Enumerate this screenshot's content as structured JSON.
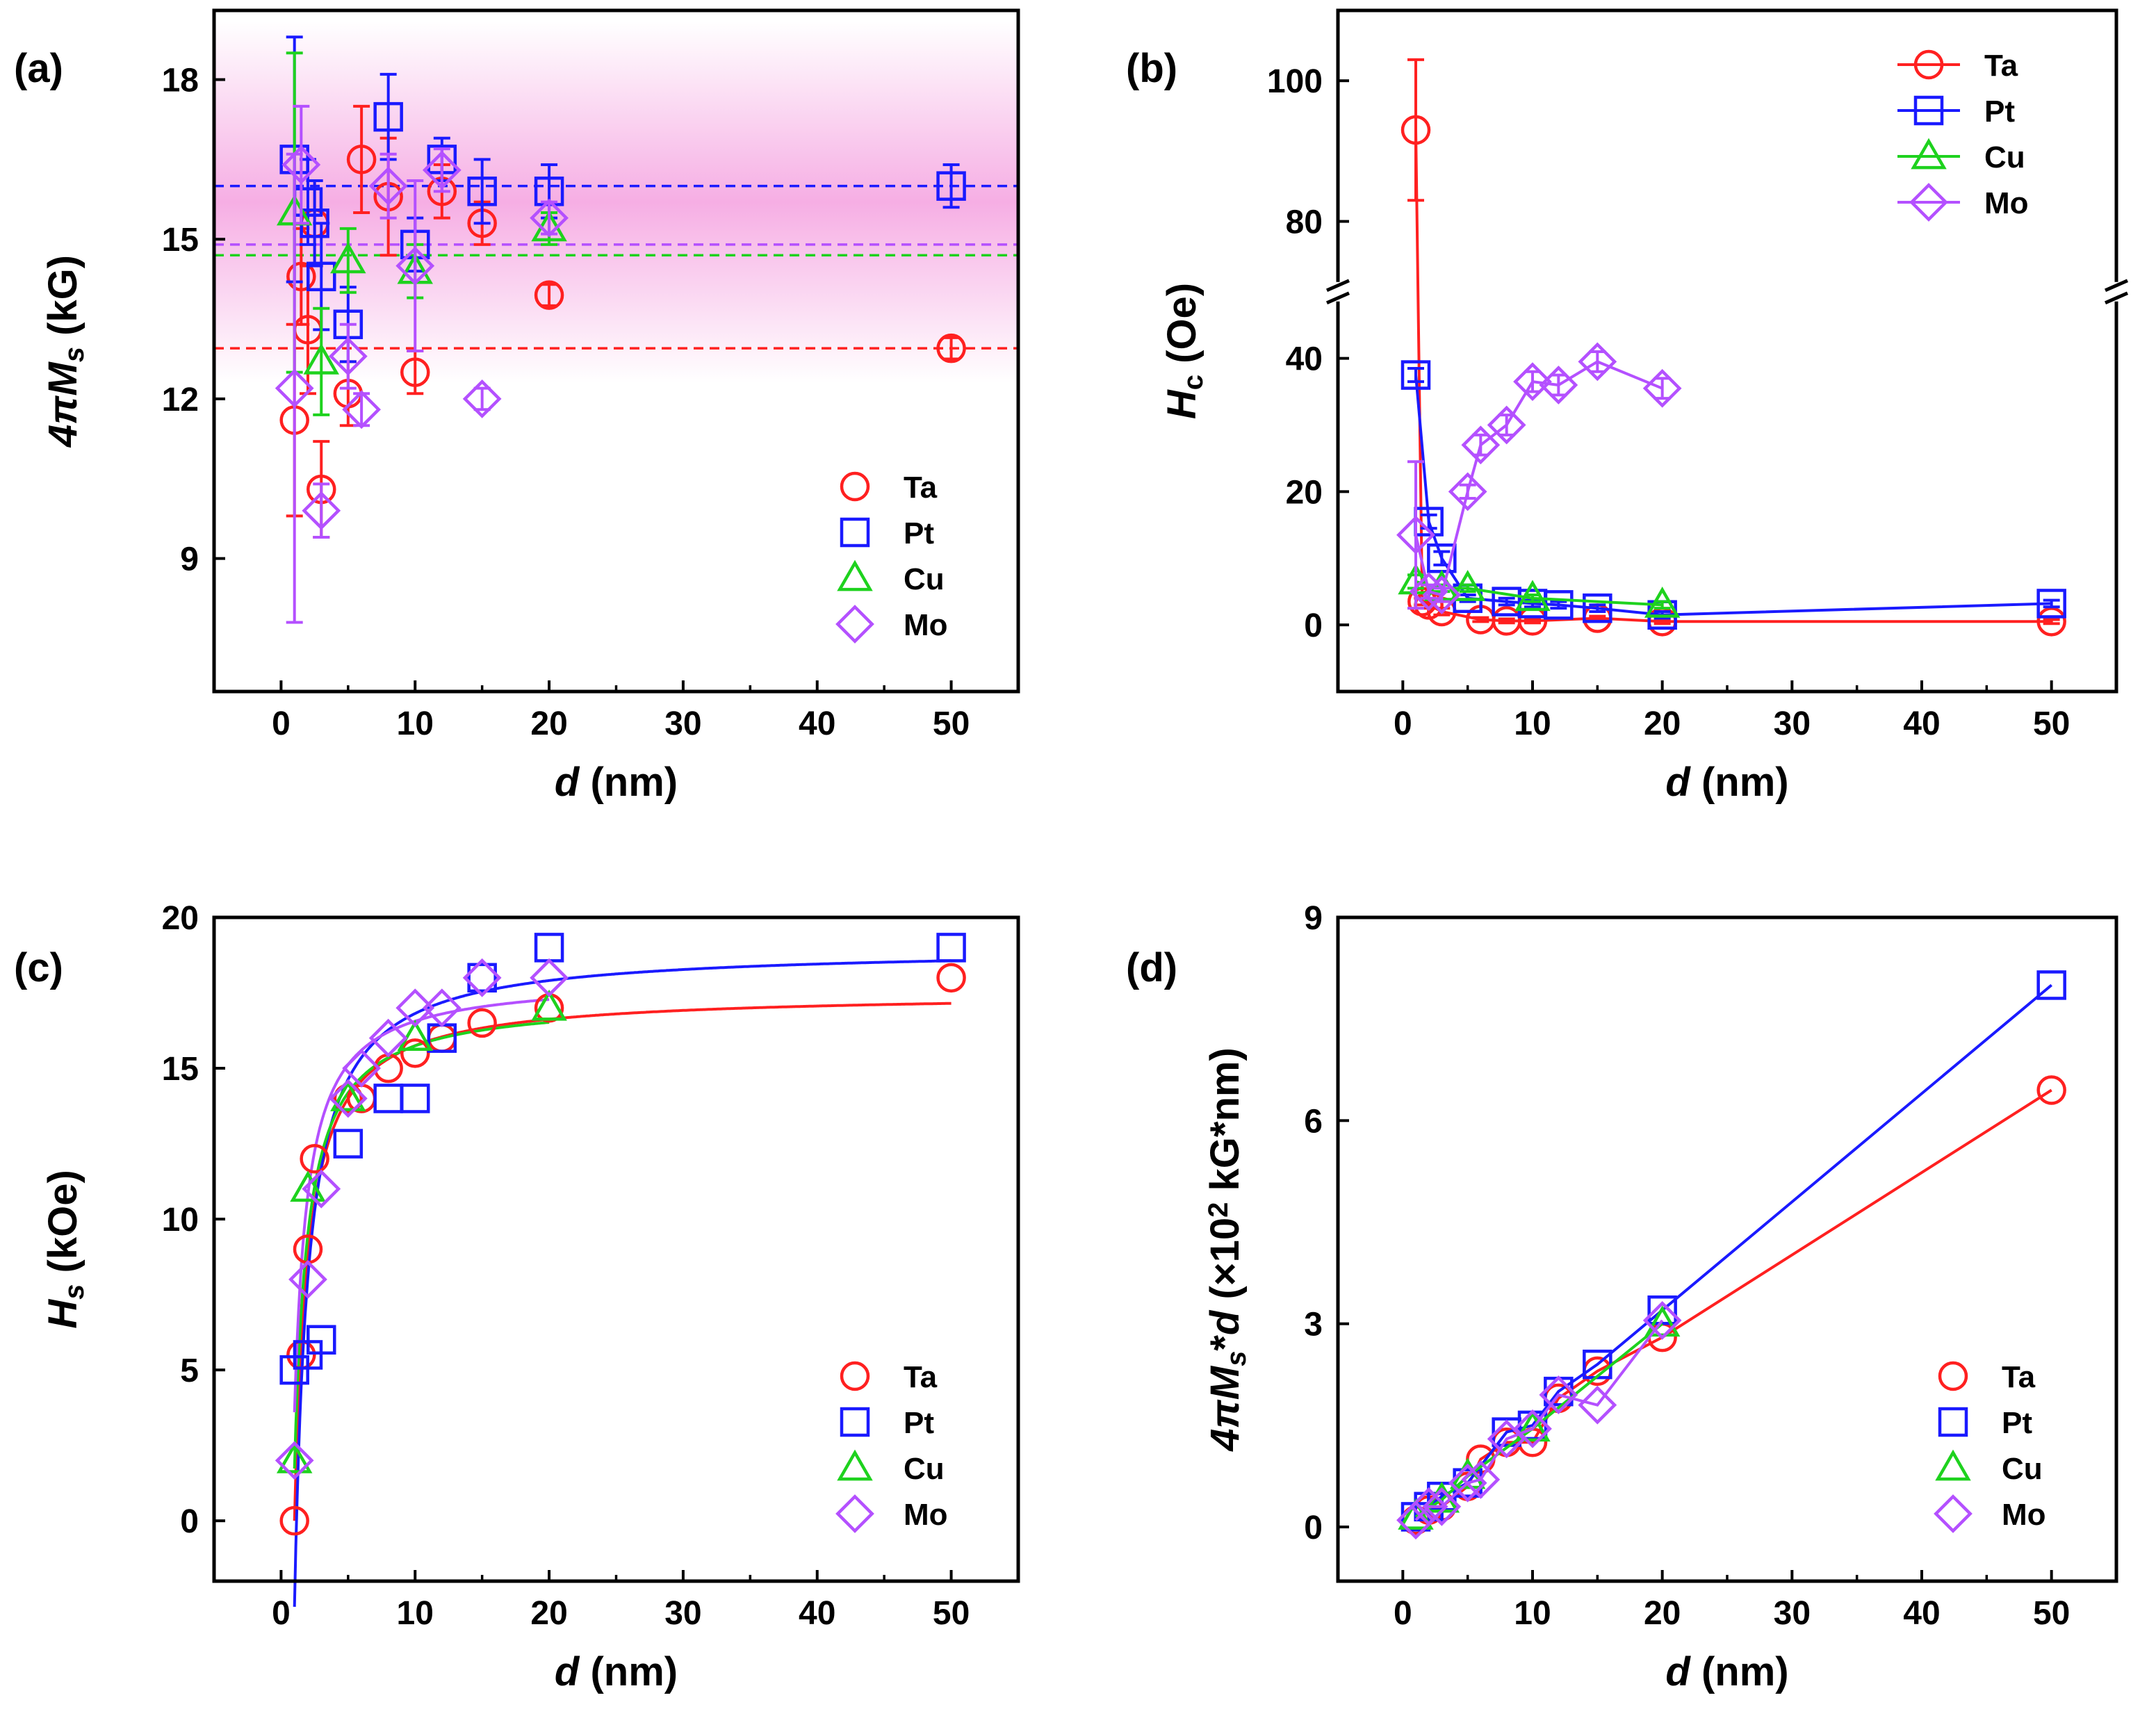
{
  "colors": {
    "Ta": "#ff2020",
    "Pt": "#1a1aff",
    "Cu": "#1ed21e",
    "Mo": "#b450ff"
  },
  "chart_data": [
    {
      "id": "a",
      "panel_label": "(a)",
      "type": "scatter",
      "xlabel_italic": "d",
      "xlabel_rest": " (nm)",
      "ylabel_parts": [
        {
          "t": "4",
          "i": true
        },
        {
          "t": "π",
          "i": true
        },
        {
          "t": "M",
          "i": true
        },
        {
          "t": "s",
          "i": true,
          "sub": true
        },
        {
          "t": " (kG)",
          "i": false
        }
      ],
      "xlim": [
        -5,
        55
      ],
      "ylim": [
        6.5,
        19.3
      ],
      "xticks": [
        0,
        10,
        20,
        30,
        40,
        50
      ],
      "yticks": [
        9,
        12,
        15,
        18
      ],
      "legend": {
        "position": "bottom-right",
        "entries": [
          "Ta",
          "Pt",
          "Cu",
          "Mo"
        ],
        "with_line": false
      },
      "shaded_band": {
        "center": 15.7,
        "half_width": 3.4,
        "color": "#f078d2"
      },
      "hlines": [
        {
          "series": "Pt",
          "y": 16.0
        },
        {
          "series": "Mo",
          "y": 14.9
        },
        {
          "series": "Cu",
          "y": 14.7
        },
        {
          "series": "Ta",
          "y": 12.95
        }
      ],
      "series": [
        {
          "name": "Ta",
          "marker": "circle",
          "points": [
            {
              "x": 1,
              "y": 11.6,
              "err": 1.8
            },
            {
              "x": 1.5,
              "y": 14.3,
              "err": 0.9
            },
            {
              "x": 2,
              "y": 13.3,
              "err": 1.2
            },
            {
              "x": 2.5,
              "y": 15.3,
              "err": 0.8
            },
            {
              "x": 3,
              "y": 10.3,
              "err": 0.9
            },
            {
              "x": 5,
              "y": 12.1,
              "err": 0.6
            },
            {
              "x": 6,
              "y": 16.5,
              "err": 1.0
            },
            {
              "x": 8,
              "y": 15.8,
              "err": 1.1
            },
            {
              "x": 10,
              "y": 12.5,
              "err": 0.4
            },
            {
              "x": 12,
              "y": 15.9,
              "err": 0.5
            },
            {
              "x": 15,
              "y": 15.3,
              "err": 0.4
            },
            {
              "x": 20,
              "y": 13.95,
              "err": 0.2
            },
            {
              "x": 50,
              "y": 12.95,
              "err": 0.2
            }
          ]
        },
        {
          "name": "Pt",
          "marker": "square",
          "points": [
            {
              "x": 1,
              "y": 16.5,
              "err": 2.3
            },
            {
              "x": 2,
              "y": 15.7,
              "err": 0.8
            },
            {
              "x": 2.5,
              "y": 15.3,
              "err": 0.8
            },
            {
              "x": 3,
              "y": 14.3,
              "err": 1.0
            },
            {
              "x": 5,
              "y": 13.4,
              "err": 0.7
            },
            {
              "x": 8,
              "y": 17.3,
              "err": 0.8
            },
            {
              "x": 10,
              "y": 14.9,
              "err": 0.5
            },
            {
              "x": 12,
              "y": 16.5,
              "err": 0.4
            },
            {
              "x": 15,
              "y": 15.9,
              "err": 0.6
            },
            {
              "x": 20,
              "y": 15.9,
              "err": 0.5
            },
            {
              "x": 50,
              "y": 16.0,
              "err": 0.4
            }
          ]
        },
        {
          "name": "Cu",
          "marker": "triangle",
          "points": [
            {
              "x": 1,
              "y": 15.5,
              "err": 3.0
            },
            {
              "x": 3,
              "y": 12.7,
              "err": 1.0
            },
            {
              "x": 5,
              "y": 14.6,
              "err": 0.6
            },
            {
              "x": 10,
              "y": 14.4,
              "err": 0.5
            },
            {
              "x": 20,
              "y": 15.2,
              "err": 0.3
            }
          ]
        },
        {
          "name": "Mo",
          "marker": "diamond",
          "points": [
            {
              "x": 1,
              "y": 12.2,
              "err": 4.4
            },
            {
              "x": 1.5,
              "y": 16.4,
              "err": 1.1
            },
            {
              "x": 3,
              "y": 9.9,
              "err": 0.5
            },
            {
              "x": 5,
              "y": 12.8,
              "err": 0.6
            },
            {
              "x": 6,
              "y": 11.8,
              "err": 0.3
            },
            {
              "x": 8,
              "y": 16.0,
              "err": 0.6
            },
            {
              "x": 10,
              "y": 14.5,
              "err": 1.6
            },
            {
              "x": 12,
              "y": 16.3,
              "err": 0.4
            },
            {
              "x": 15,
              "y": 12.0,
              "err": 0.2
            },
            {
              "x": 20,
              "y": 15.4,
              "err": 0.3
            }
          ]
        }
      ]
    },
    {
      "id": "b",
      "panel_label": "(b)",
      "type": "line",
      "xlabel_italic": "d",
      "xlabel_rest": " (nm)",
      "ylabel_parts": [
        {
          "t": "H",
          "i": true
        },
        {
          "t": "c",
          "i": false,
          "sub": true
        },
        {
          "t": " (Oe)",
          "i": false
        }
      ],
      "xlim": [
        -5,
        55
      ],
      "broken_y": {
        "lower": [
          -10,
          50
        ],
        "upper": [
          70,
          110
        ],
        "lower_frac": 0.587
      },
      "xticks": [
        0,
        10,
        20,
        30,
        40,
        50
      ],
      "yticks": [
        0,
        20,
        40,
        80,
        100
      ],
      "legend": {
        "position": "top-right",
        "entries": [
          "Ta",
          "Pt",
          "Cu",
          "Mo"
        ],
        "with_line": true
      },
      "series": [
        {
          "name": "Ta",
          "marker": "circle",
          "points": [
            {
              "x": 1,
              "y": 93,
              "err": 10
            },
            {
              "x": 1.5,
              "y": 3.5,
              "err": 0.5
            },
            {
              "x": 2,
              "y": 3,
              "err": 0.5
            },
            {
              "x": 3,
              "y": 2,
              "err": 0.5
            },
            {
              "x": 6,
              "y": 0.8,
              "err": 0.3
            },
            {
              "x": 8,
              "y": 0.6,
              "err": 0.3
            },
            {
              "x": 10,
              "y": 0.6,
              "err": 0.3
            },
            {
              "x": 15,
              "y": 1,
              "err": 0.3
            },
            {
              "x": 20,
              "y": 0.5,
              "err": 0.3
            },
            {
              "x": 50,
              "y": 0.5,
              "err": 0.3
            }
          ]
        },
        {
          "name": "Pt",
          "marker": "square",
          "points": [
            {
              "x": 1,
              "y": 37.5,
              "err": 1
            },
            {
              "x": 2,
              "y": 15.5,
              "err": 1
            },
            {
              "x": 3,
              "y": 10,
              "err": 1
            },
            {
              "x": 5,
              "y": 4,
              "err": 0.5
            },
            {
              "x": 8,
              "y": 3.5,
              "err": 0.5
            },
            {
              "x": 10,
              "y": 3.2,
              "err": 0.5
            },
            {
              "x": 12,
              "y": 3,
              "err": 0.5
            },
            {
              "x": 15,
              "y": 2.5,
              "err": 0.5
            },
            {
              "x": 20,
              "y": 1.5,
              "err": 0.5
            },
            {
              "x": 50,
              "y": 3.2,
              "err": 0.5
            }
          ]
        },
        {
          "name": "Cu",
          "marker": "triangle",
          "points": [
            {
              "x": 1,
              "y": 6.5,
              "err": 1
            },
            {
              "x": 3,
              "y": 5.5,
              "err": 0.5
            },
            {
              "x": 5,
              "y": 5.5,
              "err": 0.5
            },
            {
              "x": 10,
              "y": 4,
              "err": 0.5
            },
            {
              "x": 20,
              "y": 3,
              "err": 0.5
            }
          ]
        },
        {
          "name": "Mo",
          "marker": "diamond",
          "points": [
            {
              "x": 1,
              "y": 13.5,
              "err": 11
            },
            {
              "x": 2,
              "y": 5,
              "err": 1
            },
            {
              "x": 3,
              "y": 4.5,
              "err": 1
            },
            {
              "x": 5,
              "y": 20,
              "err": 1
            },
            {
              "x": 6,
              "y": 27,
              "err": 1.5
            },
            {
              "x": 8,
              "y": 30,
              "err": 1.5
            },
            {
              "x": 10,
              "y": 36.5,
              "err": 1.5
            },
            {
              "x": 12,
              "y": 36,
              "err": 1.5
            },
            {
              "x": 15,
              "y": 39.5,
              "err": 1.5
            },
            {
              "x": 20,
              "y": 35.5,
              "err": 1.5
            }
          ]
        }
      ]
    },
    {
      "id": "c",
      "panel_label": "(c)",
      "type": "scatter",
      "xlabel_italic": "d",
      "xlabel_rest": " (nm)",
      "ylabel_parts": [
        {
          "t": "H",
          "i": true
        },
        {
          "t": "s",
          "i": true,
          "sub": true
        },
        {
          "t": " (kOe)",
          "i": false
        }
      ],
      "xlim": [
        -5,
        55
      ],
      "ylim": [
        -2,
        20
      ],
      "xticks": [
        0,
        10,
        20,
        30,
        40,
        50
      ],
      "yticks": [
        0,
        5,
        10,
        15,
        20
      ],
      "legend": {
        "position": "bottom-right",
        "entries": [
          "Ta",
          "Pt",
          "Cu",
          "Mo"
        ],
        "with_line": false
      },
      "fits": [
        {
          "series": "Ta",
          "hsat": 17.5,
          "dc": 1.0,
          "xmax": 50
        },
        {
          "series": "Pt",
          "hsat": 19.0,
          "dc": 1.15,
          "xmax": 50
        },
        {
          "series": "Cu",
          "hsat": 17.3,
          "dc": 0.9,
          "xmax": 20
        },
        {
          "series": "Mo",
          "hsat": 18.0,
          "dc": 0.8,
          "xmax": 20
        }
      ],
      "series": [
        {
          "name": "Ta",
          "marker": "circle",
          "points": [
            {
              "x": 1,
              "y": 0
            },
            {
              "x": 1.5,
              "y": 5.5
            },
            {
              "x": 2,
              "y": 9
            },
            {
              "x": 2.5,
              "y": 12
            },
            {
              "x": 5,
              "y": 14
            },
            {
              "x": 6,
              "y": 14
            },
            {
              "x": 8,
              "y": 15
            },
            {
              "x": 10,
              "y": 15.5
            },
            {
              "x": 12,
              "y": 16
            },
            {
              "x": 15,
              "y": 16.5
            },
            {
              "x": 20,
              "y": 17
            },
            {
              "x": 50,
              "y": 18
            }
          ]
        },
        {
          "name": "Pt",
          "marker": "square",
          "points": [
            {
              "x": 1,
              "y": 5
            },
            {
              "x": 2,
              "y": 5.5
            },
            {
              "x": 3,
              "y": 6
            },
            {
              "x": 5,
              "y": 12.5
            },
            {
              "x": 8,
              "y": 14
            },
            {
              "x": 10,
              "y": 14
            },
            {
              "x": 12,
              "y": 16
            },
            {
              "x": 15,
              "y": 18
            },
            {
              "x": 20,
              "y": 19
            },
            {
              "x": 50,
              "y": 19
            }
          ]
        },
        {
          "name": "Cu",
          "marker": "triangle",
          "points": [
            {
              "x": 1,
              "y": 2
            },
            {
              "x": 2,
              "y": 11
            },
            {
              "x": 5,
              "y": 14
            },
            {
              "x": 10,
              "y": 16
            },
            {
              "x": 20,
              "y": 17
            }
          ]
        },
        {
          "name": "Mo",
          "marker": "diamond",
          "points": [
            {
              "x": 1,
              "y": 2
            },
            {
              "x": 2,
              "y": 8
            },
            {
              "x": 3,
              "y": 11
            },
            {
              "x": 5,
              "y": 14
            },
            {
              "x": 6,
              "y": 15
            },
            {
              "x": 8,
              "y": 16
            },
            {
              "x": 10,
              "y": 17
            },
            {
              "x": 12,
              "y": 17
            },
            {
              "x": 15,
              "y": 18
            },
            {
              "x": 20,
              "y": 18
            }
          ]
        }
      ]
    },
    {
      "id": "d",
      "panel_label": "(d)",
      "type": "line",
      "xlabel_italic": "d",
      "xlabel_rest": " (nm)",
      "ylabel_parts": [
        {
          "t": "4",
          "i": true
        },
        {
          "t": "π",
          "i": true
        },
        {
          "t": "M",
          "i": true
        },
        {
          "t": "s",
          "i": true,
          "sub": true
        },
        {
          "t": "*",
          "i": false
        },
        {
          "t": "d",
          "i": true
        },
        {
          "t": " (×10",
          "i": false
        },
        {
          "t": "2",
          "i": false,
          "sup": true
        },
        {
          "t": " kG*nm)",
          "i": false
        }
      ],
      "xlim": [
        -5,
        55
      ],
      "ylim": [
        -0.8,
        9
      ],
      "xticks": [
        0,
        10,
        20,
        30,
        40,
        50
      ],
      "yticks": [
        0,
        3,
        6,
        9
      ],
      "legend": {
        "position": "bottom-right",
        "entries": [
          "Ta",
          "Pt",
          "Cu",
          "Mo"
        ],
        "with_line": false
      },
      "series": [
        {
          "name": "Ta",
          "marker": "circle",
          "line": true,
          "points": [
            {
              "x": 1,
              "y": 0.1
            },
            {
              "x": 2,
              "y": 0.25
            },
            {
              "x": 3,
              "y": 0.3
            },
            {
              "x": 5,
              "y": 0.6
            },
            {
              "x": 6,
              "y": 1.0
            },
            {
              "x": 8,
              "y": 1.25
            },
            {
              "x": 10,
              "y": 1.25
            },
            {
              "x": 12,
              "y": 1.9
            },
            {
              "x": 15,
              "y": 2.3
            },
            {
              "x": 20,
              "y": 2.8
            },
            {
              "x": 50,
              "y": 6.45
            }
          ]
        },
        {
          "name": "Pt",
          "marker": "square",
          "line": true,
          "points": [
            {
              "x": 1,
              "y": 0.15
            },
            {
              "x": 2,
              "y": 0.3
            },
            {
              "x": 3,
              "y": 0.45
            },
            {
              "x": 5,
              "y": 0.65
            },
            {
              "x": 8,
              "y": 1.4
            },
            {
              "x": 10,
              "y": 1.5
            },
            {
              "x": 12,
              "y": 2.0
            },
            {
              "x": 15,
              "y": 2.4
            },
            {
              "x": 20,
              "y": 3.2
            },
            {
              "x": 50,
              "y": 8.0
            }
          ]
        },
        {
          "name": "Cu",
          "marker": "triangle",
          "line": true,
          "points": [
            {
              "x": 1,
              "y": 0.15
            },
            {
              "x": 3,
              "y": 0.4
            },
            {
              "x": 5,
              "y": 0.75
            },
            {
              "x": 10,
              "y": 1.45
            },
            {
              "x": 20,
              "y": 3.0
            }
          ]
        },
        {
          "name": "Mo",
          "marker": "diamond",
          "line": true,
          "points": [
            {
              "x": 1,
              "y": 0.1
            },
            {
              "x": 2,
              "y": 0.3
            },
            {
              "x": 3,
              "y": 0.3
            },
            {
              "x": 5,
              "y": 0.65
            },
            {
              "x": 6,
              "y": 0.7
            },
            {
              "x": 8,
              "y": 1.3
            },
            {
              "x": 10,
              "y": 1.45
            },
            {
              "x": 12,
              "y": 1.95
            },
            {
              "x": 15,
              "y": 1.8
            },
            {
              "x": 20,
              "y": 3.05
            }
          ]
        }
      ]
    }
  ]
}
